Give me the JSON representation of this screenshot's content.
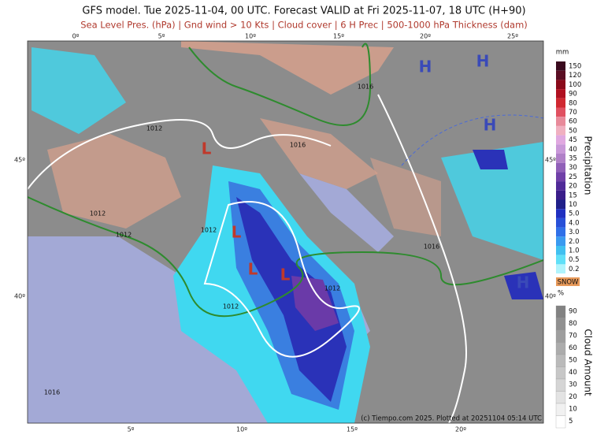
{
  "header": {
    "title": "GFS model. Tue 2025-11-04, 00 UTC. Forecast VALID at Fri 2025-11-07, 18 UTC (H+90)",
    "subtitle": "Sea Level Pres. (hPa) | Gnd wind > 10 Kts | Cloud cover | 6 H Prec | 500-1000 hPa Thickness (dam)"
  },
  "map": {
    "lon_top": [
      "0º",
      "5º",
      "10º",
      "15º",
      "20º",
      "25º"
    ],
    "lon_bottom": [
      "5º",
      "10º",
      "15º",
      "20º"
    ],
    "lat_left": [
      "45º",
      "40º"
    ],
    "lat_right": [
      "45º",
      "40º"
    ],
    "highs": [
      "H",
      "H",
      "H",
      "H"
    ],
    "lows": [
      "L",
      "L",
      "L",
      "L"
    ],
    "isobar_labels": [
      "1012",
      "1012",
      "1012",
      "1012",
      "1012",
      "1012",
      "1016",
      "1016",
      "1016",
      "1016"
    ],
    "credit": "(c) Tiempo.com 2025. Plotted at 20251104 05:14 UTC"
  },
  "legend": {
    "precip_unit": "mm",
    "precip_title": "Precipitation",
    "precip_levels": [
      "150",
      "120",
      "100",
      "90",
      "80",
      "70",
      "60",
      "50",
      "45",
      "40",
      "35",
      "30",
      "25",
      "20",
      "15",
      "10",
      "5.0",
      "4.0",
      "3.0",
      "2.0",
      "1.0",
      "0.5",
      "0.2"
    ],
    "snow": "SNOW",
    "cloud_unit": "%",
    "cloud_title": "Cloud Amount",
    "cloud_levels": [
      "90",
      "80",
      "70",
      "60",
      "50",
      "40",
      "30",
      "20",
      "10",
      "5"
    ]
  }
}
